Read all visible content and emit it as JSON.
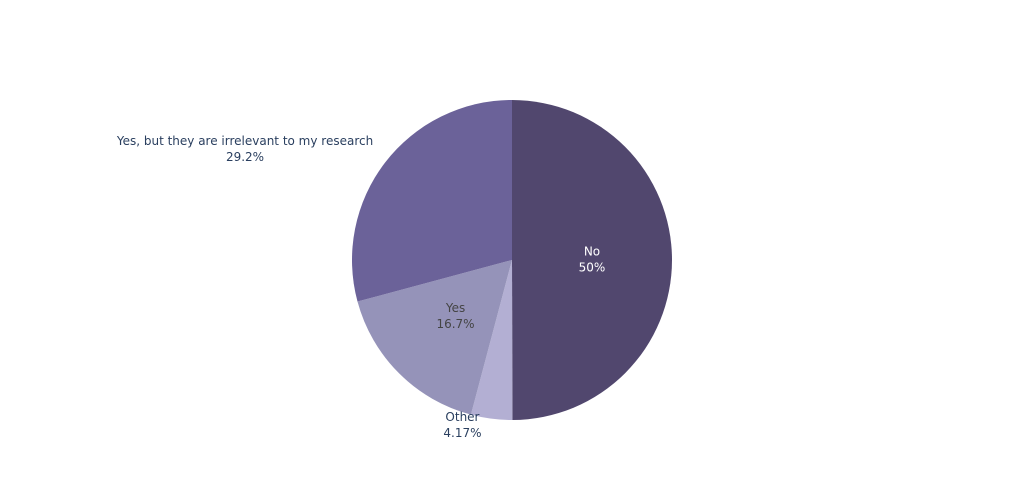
{
  "chart_data": {
    "type": "pie",
    "categories": [
      "No",
      "Other",
      "Yes",
      "Yes, but they are irrelevant to my research"
    ],
    "values": [
      50,
      4.17,
      16.7,
      29.2
    ],
    "value_labels": [
      "50%",
      "4.17%",
      "16.7%",
      "29.2%"
    ],
    "colors": [
      "#51476e",
      "#b3afd3",
      "#9593b9",
      "#6b6299"
    ]
  }
}
